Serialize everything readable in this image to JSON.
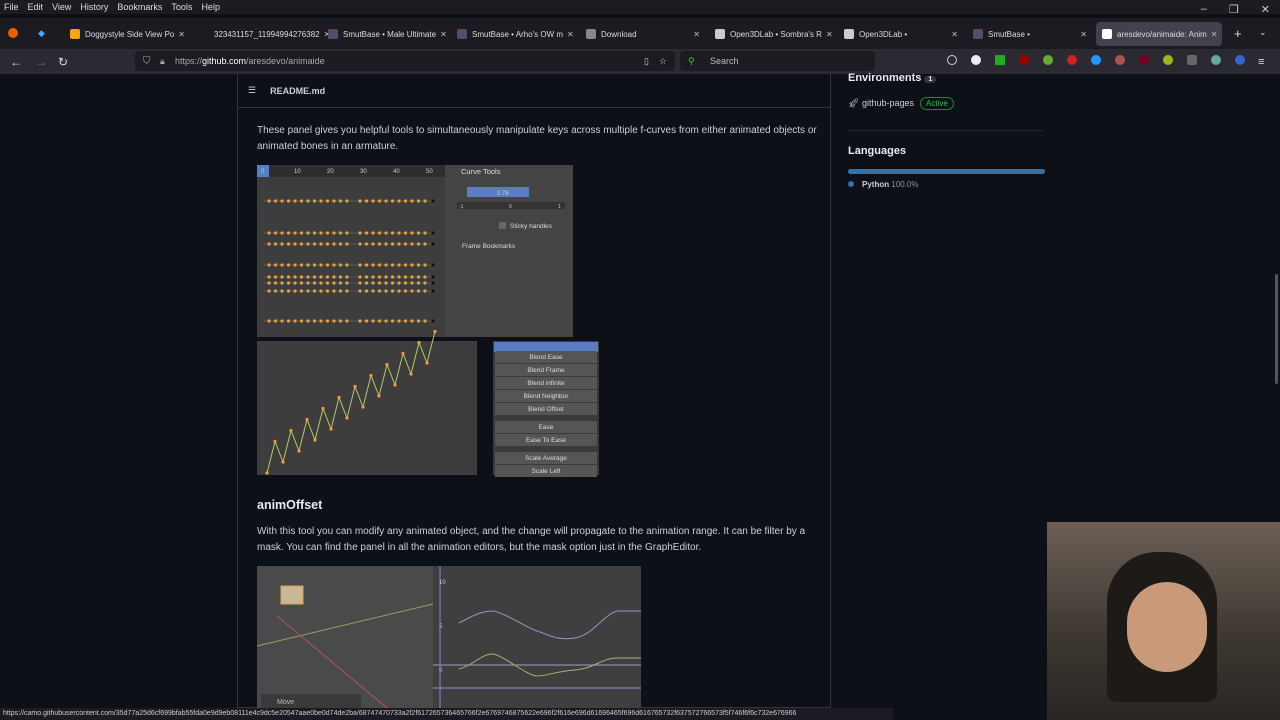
{
  "menu": [
    "File",
    "Edit",
    "View",
    "History",
    "Bookmarks",
    "Tools",
    "Help"
  ],
  "tabs": [
    {
      "title": "Doggystyle Side View Po",
      "fav": "#f7a21b"
    },
    {
      "title": "323431157_11994994276382",
      "fav": ""
    },
    {
      "title": "SmutBase • Male Ultimate",
      "fav": "#5a4a6a"
    },
    {
      "title": "SmutBase • Arho's OW m",
      "fav": "#5a4a6a"
    },
    {
      "title": "Download",
      "fav": "#888"
    },
    {
      "title": "Open3DLab • Sombra's R",
      "fav": "#ccc"
    },
    {
      "title": "Open3DLab •",
      "fav": "#ccc"
    },
    {
      "title": "SmutBase •",
      "fav": "#5a4a6a"
    },
    {
      "title": "aresdevo/animaide: Anim",
      "fav": "#fff",
      "active": true
    }
  ],
  "url": {
    "prefix": "https://",
    "domain": "github.com",
    "path": "/aresdevo/animaide"
  },
  "search_placeholder": "Search",
  "readme": {
    "file": "README.md",
    "para1": "These panel gives you helpful tools to simultaneously manipulate keys across multiple f-curves from either animated objects or animated bones in an armature.",
    "heading2": "animOffset",
    "para2": "With this tool you can modify any animated object, and the change will propagate to the animation range. It can be filter by a mask. You can find the panel in all the animation editors, but the mask option just in the GraphEditor.",
    "curve_tools": {
      "title": "Curve Tools",
      "ruler": [
        "0",
        "10",
        "20",
        "30",
        "40",
        "50"
      ],
      "value": "0.78",
      "slider": [
        "-1",
        "0",
        "1"
      ],
      "sticky": "Sticky handles",
      "bookmarks": "Frame Bookmarks"
    },
    "menu_items": [
      "Blend Ease",
      "Blend Frame",
      "Blend infinite",
      "Blend Neighbor",
      "Blend Offset",
      "Ease",
      "Ease To Ease",
      "Scale Average",
      "Scale Left"
    ],
    "offset_img": {
      "move": "Move",
      "axis": [
        "10",
        "5",
        "0"
      ]
    }
  },
  "sidebar": {
    "environments": "Environments",
    "env_count": "1",
    "env_name": "github-pages",
    "env_status": "Active",
    "languages": "Languages",
    "lang": "Python",
    "lang_pct": "100.0%",
    "lang_color": "#3572A5"
  },
  "status_url": "https://camo.githubusercontent.com/35d77a25d6cf699bfab55fda0e9d9eb08111e4c9dc5e20547aae0be0d74de2ba/68747470733a2f2f617265736465766f2e6769746875622e696f2f616e696d61696465f696d616765732f637572766573f5f746f6f6c732e676966"
}
